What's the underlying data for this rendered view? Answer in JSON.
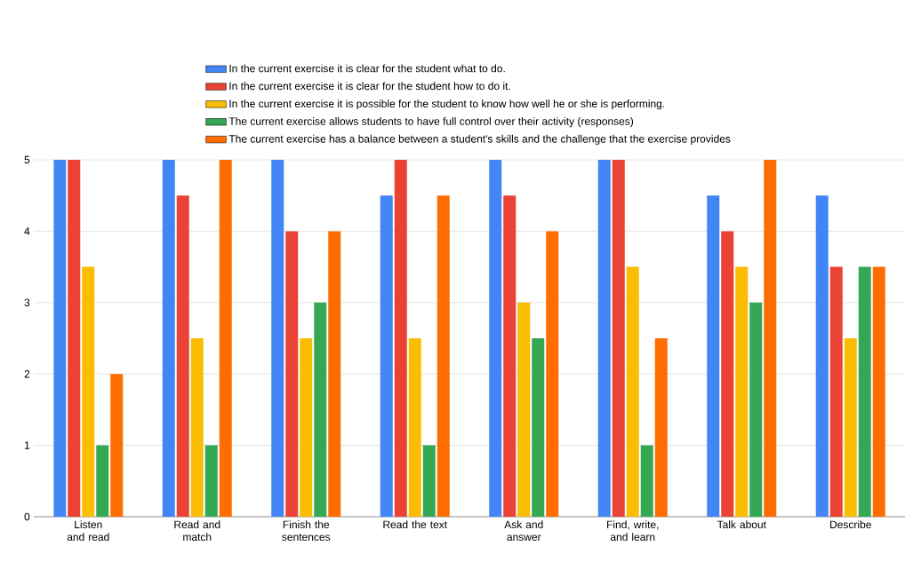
{
  "chart_data": {
    "type": "bar",
    "categories": [
      "Listen and read",
      "Read and match",
      "Finish the sentences",
      "Read the text",
      "Ask and answer",
      "Find, write, and learn",
      "Talk about",
      "Describe"
    ],
    "series": [
      {
        "name": "In the current exercise it is clear for the student what to do.",
        "color": "#4285f4",
        "values": [
          5,
          5,
          5,
          4.5,
          5,
          5,
          4.5,
          4.5
        ]
      },
      {
        "name": "In the current exercise it is clear for the student how to do it.",
        "color": "#ea4335",
        "values": [
          5,
          4.5,
          4,
          5,
          4.5,
          5,
          4,
          3.5
        ]
      },
      {
        "name": "In the current exercise it is possible for the student to know how well he or she is performing.",
        "color": "#fbbc04",
        "values": [
          3.5,
          2.5,
          2.5,
          2.5,
          3,
          3.5,
          3.5,
          2.5
        ]
      },
      {
        "name": "The current exercise allows students to have full control over their activity (responses)",
        "color": "#34a853",
        "values": [
          1,
          1,
          3,
          1,
          2.5,
          1,
          3,
          3.5
        ]
      },
      {
        "name": "The current exercise has a balance between a student's skills and the challenge that the exercise provides",
        "color": "#ff6d01",
        "values": [
          2,
          5,
          4,
          4.5,
          4,
          2.5,
          5,
          3.5
        ]
      }
    ],
    "ylim": [
      0,
      5
    ],
    "yticks": [
      0,
      1,
      2,
      3,
      4,
      5
    ],
    "grid": "y",
    "legend": "top"
  }
}
